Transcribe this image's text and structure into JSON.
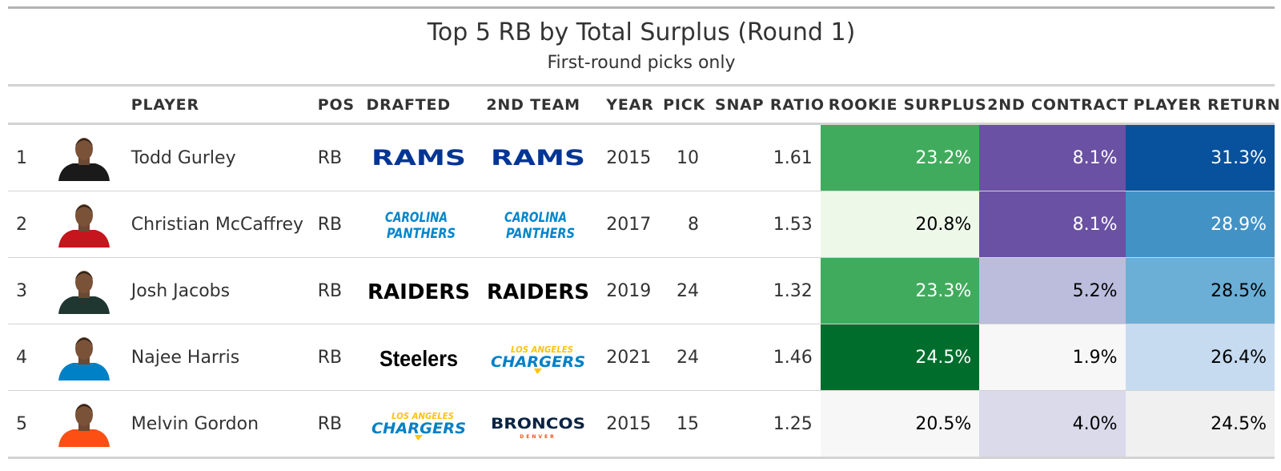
{
  "chart_data": {
    "type": "table",
    "title": "Top 5 RB by Total Surplus (Round 1)",
    "subtitle": "First-round picks only",
    "columns": [
      "",
      "",
      "PLAYER",
      "POS",
      "DRAFTED",
      "2ND TEAM",
      "YEAR",
      "PICK",
      "SNAP RATIO",
      "ROOKIE SURPLUS",
      "2ND CONTRACT",
      "PLAYER RETURN"
    ],
    "rows": [
      {
        "rank": "1",
        "player": "Todd Gurley",
        "pos": "RB",
        "drafted": "RAMS",
        "second_team": "RAMS",
        "year": "2015",
        "pick": "10",
        "snap_ratio": "1.61",
        "rookie_surplus": "23.2%",
        "second_contract": "8.1%",
        "player_return": "31.3%",
        "colors": {
          "rookie": "#41ab5d",
          "second": "#6a51a3",
          "ret": "#08519c",
          "jersey": "#1a1a1a"
        },
        "logos": {
          "drafted": "rams",
          "second": "rams"
        }
      },
      {
        "rank": "2",
        "player": "Christian McCaffrey",
        "pos": "RB",
        "drafted": "CAROLINA PANTHERS",
        "second_team": "CAROLINA PANTHERS",
        "year": "2017",
        "pick": "8",
        "snap_ratio": "1.53",
        "rookie_surplus": "20.8%",
        "second_contract": "8.1%",
        "player_return": "28.9%",
        "colors": {
          "rookie": "#edf8e9",
          "second": "#6a51a3",
          "ret": "#4292c6",
          "jersey": "#c4161c"
        },
        "logos": {
          "drafted": "panthers",
          "second": "panthers"
        }
      },
      {
        "rank": "3",
        "player": "Josh Jacobs",
        "pos": "RB",
        "drafted": "RAIDERS",
        "second_team": "RAIDERS",
        "year": "2019",
        "pick": "24",
        "snap_ratio": "1.32",
        "rookie_surplus": "23.3%",
        "second_contract": "5.2%",
        "player_return": "28.5%",
        "colors": {
          "rookie": "#41ab5d",
          "second": "#bcbddc",
          "ret": "#6baed6",
          "jersey": "#203731"
        },
        "logos": {
          "drafted": "raiders",
          "second": "raiders"
        }
      },
      {
        "rank": "4",
        "player": "Najee Harris",
        "pos": "RB",
        "drafted": "Steelers",
        "second_team": "LOS ANGELES CHARGERS",
        "year": "2021",
        "pick": "24",
        "snap_ratio": "1.46",
        "rookie_surplus": "24.5%",
        "second_contract": "1.9%",
        "player_return": "26.4%",
        "colors": {
          "rookie": "#006d2c",
          "second": "#f7f7f7",
          "ret": "#c6dbef",
          "jersey": "#0080c6"
        },
        "logos": {
          "drafted": "steelers",
          "second": "chargers"
        }
      },
      {
        "rank": "5",
        "player": "Melvin Gordon",
        "pos": "RB",
        "drafted": "LOS ANGELES CHARGERS",
        "second_team": "BRONCOS",
        "year": "2015",
        "pick": "15",
        "snap_ratio": "1.25",
        "rookie_surplus": "20.5%",
        "second_contract": "4.0%",
        "player_return": "24.5%",
        "colors": {
          "rookie": "#f7f7f7",
          "second": "#dadaeb",
          "ret": "#f0f0f0",
          "jersey": "#fb4f14"
        },
        "logos": {
          "drafted": "chargers",
          "second": "broncos"
        }
      }
    ],
    "logo_sub": {
      "chargers_top": "LOS ANGELES",
      "chargers_main": "CHARGERS",
      "broncos_sub": "DENVER",
      "panthers_top": "CAROLINA",
      "panthers_bottom": "PANTHERS"
    }
  }
}
